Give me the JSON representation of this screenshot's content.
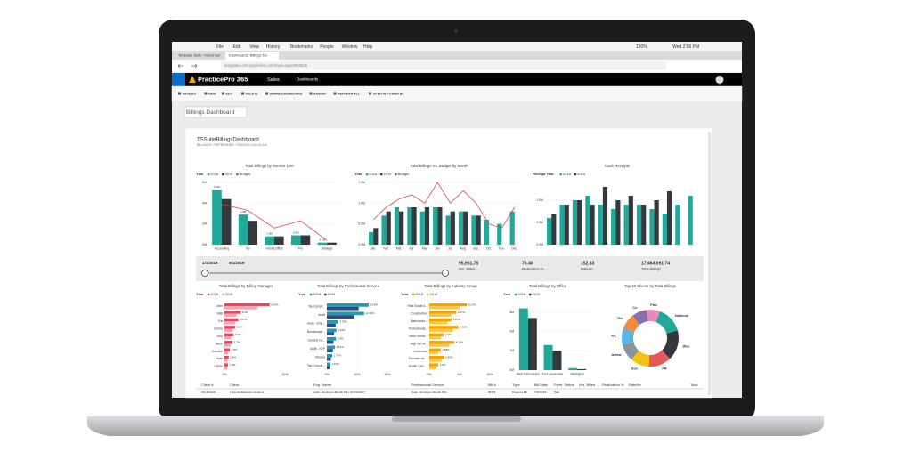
{
  "menu_bar": {
    "items": [
      "File",
      "Edit",
      "View",
      "History",
      "Bookmarks",
      "People",
      "Window",
      "Help"
    ],
    "battery": "100%",
    "clock": "Wed 2:56 PM"
  },
  "browser": {
    "tabs": [
      "Template Suite: Timesheet",
      "Dashboards: Billings Da"
    ],
    "url": "templates.crm.dynamics.com/main.aspx#955635"
  },
  "app_bar": {
    "product": "PracticePro 365",
    "area": "Sales",
    "nav": "Dashboards"
  },
  "commands": [
    "SAVE AS",
    "NEW",
    "EDIT",
    "DELETE",
    "SHARE DASHBOARD",
    "ASSIGN",
    "REFRESH ALL",
    "OPEN IN POWER BI"
  ],
  "dashboard_selector": "Billings Dashboard",
  "report": {
    "title": "TSSuiteBillingsDashboard",
    "subtitle": "BILLINGS • REFRESHED: 7/26/2019 4:44:31 AM",
    "date_range": [
      "1/1/2018",
      "9/1/2019"
    ],
    "kpis": [
      {
        "value": "95,951.75",
        "label": "Hrs. Billed"
      },
      {
        "value": "76.40",
        "label": "Realization %"
      },
      {
        "value": "152.83",
        "label": "Rate/Hr."
      },
      {
        "value": "17,464,091.74",
        "label": "Total Billings"
      }
    ],
    "charts": [
      {
        "type": "bar",
        "title": "Total Billings by Service Line",
        "legend_title": "Year",
        "categories": [
          "Accounting",
          "Tax",
          "Family Office",
          "Pro",
          "Strategic"
        ],
        "series": [
          {
            "name": "2018",
            "color": "#1fa99b",
            "values": [
              5.3,
              2.9,
              0.8,
              0.9,
              0.2
            ],
            "value_labels": [
              "5.3M",
              "2.9M",
              "0.8M",
              "0.9M",
              "0.2M"
            ]
          },
          {
            "name": "2019",
            "color": "#33393d",
            "values": [
              4.4,
              2.3,
              0.8,
              0.9,
              0.2
            ]
          },
          {
            "name": "Budget",
            "color": "#e0474c",
            "type": "line",
            "values": [
              3.9,
              3.3,
              1.6,
              2.3,
              0.4
            ]
          }
        ],
        "ylim": [
          0,
          6
        ],
        "yticks": [
          {
            "value": 0,
            "label": "0M"
          },
          {
            "value": 2,
            "label": "2M"
          },
          {
            "value": 4,
            "label": "4M"
          },
          {
            "value": 6,
            "label": "6M"
          }
        ]
      },
      {
        "type": "bar",
        "title": "Total Billings Vs. Budget by Month",
        "legend_title": "Year",
        "categories": [
          "Jan.",
          "Feb.",
          "Mar.",
          "Apr.",
          "May",
          "Jun.",
          "Jul.",
          "Aug.",
          "Sep.",
          "Oct.",
          "Nov.",
          "Dec."
        ],
        "series": [
          {
            "name": "2018",
            "color": "#1fa99b",
            "values": [
              0.3,
              0.7,
              0.9,
              0.9,
              0.8,
              0.9,
              0.7,
              0.8,
              0.7,
              0.6,
              0.5,
              0.8
            ]
          },
          {
            "name": "2019",
            "color": "#33393d",
            "values": [
              0.4,
              0.8,
              0.8,
              0.9,
              0.9,
              0.9,
              0.8,
              0.8,
              0.7,
              null,
              null,
              null
            ]
          },
          {
            "name": "Budget",
            "color": "#e0474c",
            "type": "line",
            "values": [
              0.6,
              0.9,
              1.1,
              1.2,
              1.0,
              1.5,
              1.0,
              1.3,
              1.0,
              0.5,
              0.4,
              0.9
            ]
          }
        ],
        "ylim": [
          0,
          1.5
        ],
        "yticks": [
          {
            "value": 0,
            "label": "0.0M"
          },
          {
            "value": 0.5,
            "label": "0.5M"
          },
          {
            "value": 1,
            "label": "1.0M"
          },
          {
            "value": 1.5,
            "label": "1.5M"
          }
        ]
      },
      {
        "type": "bar",
        "title": "Cash Receipts",
        "legend_title": "Receipt Year",
        "series": [
          {
            "name": "2018",
            "color": "#1fa99b",
            "values": [
              0.6,
              0.9,
              1.0,
              1.1,
              0.9,
              0.8,
              0.9,
              0.9,
              0.8,
              0.7,
              0.9,
              1.1
            ]
          },
          {
            "name": "2019",
            "color": "#33393d",
            "values": [
              0.7,
              0.9,
              1.0,
              0.9,
              1.3,
              1.0,
              1.1,
              0.9,
              1.0,
              1.2,
              null,
              null
            ]
          }
        ],
        "ylim": [
          0,
          1.4
        ],
        "yticks": [
          {
            "value": 0,
            "label": "0.0M"
          },
          {
            "value": 0.5,
            "label": "0.5M"
          },
          {
            "value": 1,
            "label": "1.0M"
          }
        ]
      },
      {
        "type": "hbar",
        "title": "Total Billings by Billing Manager",
        "legend_title": "Year",
        "categories": [
          "John",
          "Walt",
          "Pat",
          "Emma",
          "Tony",
          "Steve",
          "Candice",
          "Juan",
          "Carlos"
        ],
        "series": [
          {
            "name": "2018",
            "color": "#e8475f",
            "values": [
              14.9,
              5.4,
              4.57,
              3.6,
              3.0,
              2.7,
              1.8,
              1.4,
              1.2
            ],
            "value_labels": [
              "14.9%",
              "5.4%",
              "4.57%",
              "3.6%",
              "3.0%",
              "2.7%",
              "1.8%",
              "1.4%",
              "1.2%"
            ]
          },
          {
            "name": "2019",
            "color": "#f4a3b4",
            "values": [
              11.0,
              4.0,
              3.5,
              2.8,
              2.2,
              2.0,
              1.3,
              1.0,
              0.9
            ]
          }
        ],
        "xlim": [
          0,
          20
        ],
        "xticks": [
          {
            "value": 0,
            "label": "0%"
          },
          {
            "value": 20,
            "label": "20%"
          }
        ]
      },
      {
        "type": "hbar",
        "title": "Total Billings by Professional Service",
        "legend_title": "Year",
        "categories": [
          "Tax Compli...",
          "Audit",
          "Audit - Emp...",
          "Bookkeepin...",
          "General Co...",
          "Audit - NFP",
          "Review",
          "Tax Consult..."
        ],
        "series": [
          {
            "name": "2018",
            "color": "#1f9bb0",
            "values": [
              13.8,
              12.29,
              3.78,
              3.13,
              3.0,
              2.62,
              1.77,
              1.15
            ],
            "value_labels": [
              "13.8%",
              "12.29%",
              "3.78%",
              "3.13%",
              "3.0%",
              "2.62%",
              "1.77%",
              "1.15%"
            ]
          },
          {
            "name": "2019",
            "color": "#2b4a8f",
            "values": [
              10.5,
              9.0,
              2.9,
              2.4,
              2.2,
              2.0,
              1.3,
              0.9
            ]
          }
        ],
        "xlim": [
          0,
          20
        ],
        "xticks": [
          {
            "value": 0,
            "label": "0%"
          },
          {
            "value": 10,
            "label": "10%"
          },
          {
            "value": 20,
            "label": "20%"
          }
        ]
      },
      {
        "type": "hbar",
        "title": "Total Billings by Industry Group",
        "legend_title": "Year",
        "categories": [
          "Real Estate a...",
          "Construction",
          "Manufactur...",
          "Professional...",
          "Other Servic...",
          "High Net W...",
          "Individuals",
          "Educational ...",
          "Health Care ..."
        ],
        "series": [
          {
            "name": "2018",
            "color": "#f5a300",
            "values": [
              6.23,
              4.47,
              3.67,
              4.82,
              2.4,
              4.15,
              1.88,
              2.45,
              1.5
            ],
            "value_labels": [
              "6.23%",
              "4.47%",
              "3.67%",
              "4.82%",
              "2.4%",
              "4.15%",
              "1.88%",
              "2.45%",
              "1.5%"
            ]
          },
          {
            "name": "2019",
            "color": "#f7c843",
            "values": [
              5.0,
              3.6,
              3.0,
              3.9,
              1.9,
              3.3,
              1.5,
              2.0,
              1.2
            ]
          }
        ],
        "xlim": [
          0,
          10
        ],
        "xticks": [
          {
            "value": 0,
            "label": "0%"
          },
          {
            "value": 5,
            "label": "5%"
          },
          {
            "value": 10,
            "label": "10%"
          }
        ]
      },
      {
        "type": "bar",
        "title": "Total Billings by Office",
        "legend_title": "Year",
        "categories": [
          "West Palm Beach",
          "Fort Lauderdale",
          "Wellington"
        ],
        "series": [
          {
            "name": "2018",
            "color": "#1fa99b",
            "values": [
              3.2,
              1.3,
              0.1
            ]
          },
          {
            "name": "2019",
            "color": "#33393d",
            "values": [
              2.7,
              1.0,
              0.05
            ]
          }
        ],
        "ylim": [
          0,
          3.5
        ],
        "yticks": [
          {
            "value": 0,
            "label": "0M"
          },
          {
            "value": 1,
            "label": "1M"
          },
          {
            "value": 2,
            "label": "2M"
          },
          {
            "value": 3,
            "label": "3M"
          }
        ]
      },
      {
        "type": "donut",
        "title": "Top 10 Clients by Total Billings",
        "categories": [
          "National",
          "Wee",
          "PR",
          "Sox",
          "Arrow",
          "WC",
          "The",
          "Co",
          "Ftec"
        ],
        "values": [
          14,
          16,
          12,
          10,
          9,
          9,
          8,
          8,
          7
        ],
        "colors": [
          "#22a99a",
          "#34383c",
          "#e8585a",
          "#f4c20d",
          "#8c9398",
          "#5ab4e5",
          "#f08b3c",
          "#8b6db3",
          "#e88bb4"
        ]
      }
    ],
    "table": {
      "columns": [
        "Client #",
        "Client",
        "Eng. Name",
        "Professional Service",
        "Bill #",
        "Type",
        "Bill Date",
        "Pymt. Status",
        "Hrs. Billed",
        "Realization %",
        "Rate/Hr.",
        "Total"
      ],
      "rows": [
        [
          "SOURCE42",
          "1 Source Business Solutions",
          "Audit - Employee Benefit Plan (12/31/2017)",
          "Audit - Employee Benefit Plan",
          "85278",
          "Progress Bill",
          "7/30/2018",
          "Paid"
        ]
      ]
    }
  }
}
